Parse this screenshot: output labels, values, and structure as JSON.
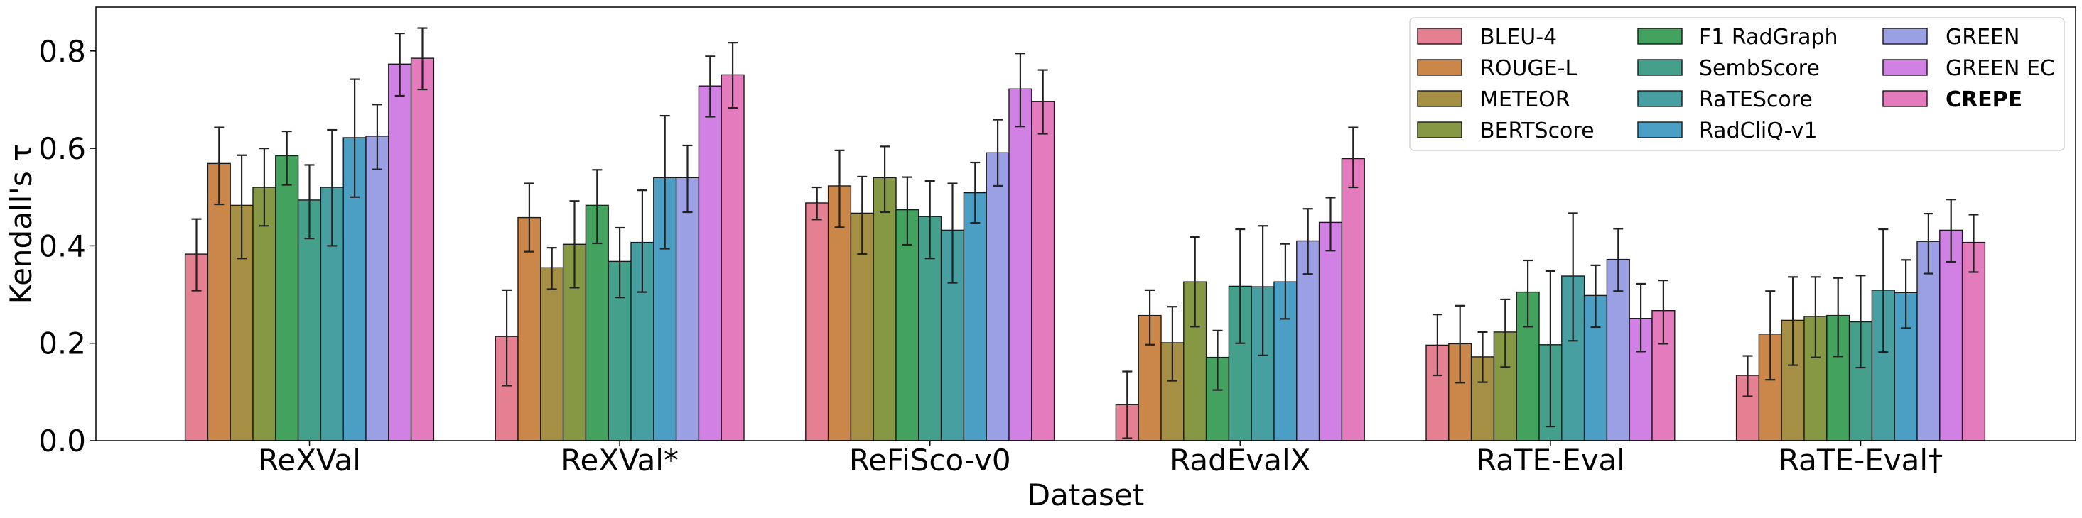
{
  "chart_data": {
    "type": "bar",
    "title": "",
    "xlabel": "Dataset",
    "ylabel": "Kendall's τ",
    "ylim": [
      0,
      0.89
    ],
    "yticks": [
      0.0,
      0.2,
      0.4,
      0.6,
      0.8
    ],
    "ytick_labels": [
      "0.0",
      "0.2",
      "0.4",
      "0.6",
      "0.8"
    ],
    "grid": false,
    "legend_position": "top-right",
    "legend_columns": 3,
    "categories": [
      "ReXVal",
      "ReXVal*",
      "ReFiSco-v0",
      "RadEvalX",
      "RaTE-Eval",
      "RaTE-Eval†"
    ],
    "series": [
      {
        "name": "BLEU-4",
        "color": "#e58092",
        "bold": false,
        "values": [
          0.383,
          0.214,
          0.488,
          0.074,
          0.196,
          0.134
        ],
        "err_low": [
          0.308,
          0.113,
          0.454,
          0.005,
          0.134,
          0.091
        ],
        "err_high": [
          0.455,
          0.309,
          0.52,
          0.142,
          0.259,
          0.174
        ]
      },
      {
        "name": "ROUGE-L",
        "color": "#cb874a",
        "bold": false,
        "values": [
          0.569,
          0.458,
          0.523,
          0.257,
          0.199,
          0.219
        ],
        "err_low": [
          0.485,
          0.388,
          0.438,
          0.197,
          0.119,
          0.125
        ],
        "err_high": [
          0.643,
          0.528,
          0.596,
          0.309,
          0.277,
          0.307
        ]
      },
      {
        "name": "METEOR",
        "color": "#a58f44",
        "bold": false,
        "values": [
          0.483,
          0.355,
          0.467,
          0.201,
          0.172,
          0.247
        ],
        "err_low": [
          0.374,
          0.311,
          0.383,
          0.123,
          0.12,
          0.155
        ],
        "err_high": [
          0.586,
          0.396,
          0.542,
          0.275,
          0.223,
          0.336
        ]
      },
      {
        "name": "BERTScore",
        "color": "#869844",
        "bold": false,
        "values": [
          0.52,
          0.403,
          0.54,
          0.326,
          0.223,
          0.255
        ],
        "err_low": [
          0.441,
          0.314,
          0.469,
          0.234,
          0.151,
          0.171
        ],
        "err_high": [
          0.6,
          0.492,
          0.604,
          0.418,
          0.29,
          0.336
        ]
      },
      {
        "name": "F1 RadGraph",
        "color": "#43a25e",
        "bold": false,
        "values": [
          0.585,
          0.483,
          0.474,
          0.171,
          0.305,
          0.257
        ],
        "err_low": [
          0.525,
          0.405,
          0.402,
          0.104,
          0.234,
          0.173
        ],
        "err_high": [
          0.635,
          0.556,
          0.541,
          0.226,
          0.37,
          0.334
        ]
      },
      {
        "name": "SembScore",
        "color": "#44a08b",
        "bold": false,
        "values": [
          0.494,
          0.368,
          0.46,
          0.317,
          0.197,
          0.244
        ],
        "err_low": [
          0.415,
          0.294,
          0.374,
          0.2,
          0.029,
          0.15
        ],
        "err_high": [
          0.566,
          0.437,
          0.533,
          0.434,
          0.348,
          0.339
        ]
      },
      {
        "name": "RaTEScore",
        "color": "#479fa2",
        "bold": false,
        "values": [
          0.52,
          0.407,
          0.432,
          0.316,
          0.338,
          0.309
        ],
        "err_low": [
          0.4,
          0.305,
          0.324,
          0.175,
          0.205,
          0.182
        ],
        "err_high": [
          0.638,
          0.514,
          0.528,
          0.441,
          0.467,
          0.434
        ]
      },
      {
        "name": "RadCliQ-v1",
        "color": "#4c9fc4",
        "bold": false,
        "values": [
          0.622,
          0.54,
          0.509,
          0.326,
          0.298,
          0.304
        ],
        "err_low": [
          0.5,
          0.394,
          0.447,
          0.25,
          0.233,
          0.231
        ],
        "err_high": [
          0.742,
          0.667,
          0.571,
          0.404,
          0.36,
          0.371
        ]
      },
      {
        "name": "GREEN",
        "color": "#9ba0e4",
        "bold": false,
        "values": [
          0.625,
          0.54,
          0.591,
          0.41,
          0.372,
          0.409
        ],
        "err_low": [
          0.557,
          0.469,
          0.523,
          0.342,
          0.307,
          0.343
        ],
        "err_high": [
          0.69,
          0.606,
          0.659,
          0.476,
          0.435,
          0.466
        ]
      },
      {
        "name": "GREEN EC",
        "color": "#d181e3",
        "bold": false,
        "values": [
          0.773,
          0.728,
          0.722,
          0.448,
          0.251,
          0.432
        ],
        "err_low": [
          0.708,
          0.665,
          0.645,
          0.39,
          0.183,
          0.367
        ],
        "err_high": [
          0.836,
          0.789,
          0.795,
          0.499,
          0.322,
          0.495
        ]
      },
      {
        "name": "CREPE",
        "color": "#e37bbd",
        "bold": true,
        "values": [
          0.785,
          0.751,
          0.696,
          0.579,
          0.267,
          0.407
        ],
        "err_low": [
          0.721,
          0.683,
          0.63,
          0.52,
          0.199,
          0.346
        ],
        "err_high": [
          0.847,
          0.817,
          0.761,
          0.643,
          0.329,
          0.464
        ]
      }
    ]
  }
}
